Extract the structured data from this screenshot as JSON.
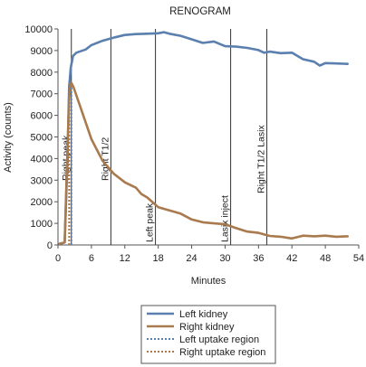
{
  "chart_data": {
    "type": "line",
    "title": "RENOGRAM",
    "xlabel": "Minutes",
    "ylabel": "Activity (counts)",
    "xlim": [
      0,
      54
    ],
    "ylim": [
      0,
      10000
    ],
    "xticks": [
      "0",
      "6",
      "12",
      "18",
      "24",
      "30",
      "36",
      "42",
      "48",
      "54"
    ],
    "yticks": [
      "0",
      "1000",
      "2000",
      "3000",
      "4000",
      "5000",
      "6000",
      "7000",
      "8000",
      "9000",
      "10000"
    ],
    "grid": false,
    "legend_position": "bottom",
    "series": [
      {
        "name": "Left kidney",
        "color": "#5b7fae",
        "style": "solid",
        "points": [
          [
            0.3,
            50
          ],
          [
            1.2,
            120
          ],
          [
            1.7,
            4000
          ],
          [
            2.0,
            7300
          ],
          [
            2.3,
            8200
          ],
          [
            2.7,
            8750
          ],
          [
            3.3,
            8900
          ],
          [
            5,
            9050
          ],
          [
            6,
            9250
          ],
          [
            8,
            9450
          ],
          [
            10,
            9600
          ],
          [
            12,
            9720
          ],
          [
            14,
            9760
          ],
          [
            16,
            9780
          ],
          [
            18,
            9800
          ],
          [
            19,
            9850
          ],
          [
            20,
            9780
          ],
          [
            22,
            9680
          ],
          [
            24,
            9520
          ],
          [
            26,
            9350
          ],
          [
            28,
            9420
          ],
          [
            30,
            9200
          ],
          [
            32,
            9180
          ],
          [
            34,
            9120
          ],
          [
            36,
            9020
          ],
          [
            37,
            8900
          ],
          [
            38,
            8950
          ],
          [
            40,
            8880
          ],
          [
            42,
            8900
          ],
          [
            44,
            8600
          ],
          [
            46,
            8480
          ],
          [
            47,
            8300
          ],
          [
            48,
            8420
          ],
          [
            50,
            8400
          ],
          [
            52,
            8380
          ]
        ]
      },
      {
        "name": "Right kidney",
        "color": "#a87a4e",
        "style": "solid",
        "points": [
          [
            0.3,
            50
          ],
          [
            1.2,
            120
          ],
          [
            1.6,
            3500
          ],
          [
            2.0,
            6800
          ],
          [
            2.4,
            7500
          ],
          [
            2.8,
            7300
          ],
          [
            4,
            6400
          ],
          [
            6,
            4900
          ],
          [
            8,
            3900
          ],
          [
            10,
            3300
          ],
          [
            12,
            2900
          ],
          [
            14,
            2650
          ],
          [
            15,
            2350
          ],
          [
            16,
            2200
          ],
          [
            18,
            1750
          ],
          [
            20,
            1600
          ],
          [
            22,
            1450
          ],
          [
            24,
            1180
          ],
          [
            26,
            1050
          ],
          [
            28,
            1000
          ],
          [
            30,
            960
          ],
          [
            32,
            780
          ],
          [
            34,
            620
          ],
          [
            36,
            560
          ],
          [
            38,
            420
          ],
          [
            40,
            380
          ],
          [
            42,
            300
          ],
          [
            44,
            430
          ],
          [
            46,
            400
          ],
          [
            48,
            430
          ],
          [
            50,
            380
          ],
          [
            52,
            400
          ]
        ]
      },
      {
        "name": "Left uptake region",
        "color": "#5b7fae",
        "style": "dotted",
        "x": 2.4,
        "y_range": [
          0,
          7300
        ]
      },
      {
        "name": "Right uptake region",
        "color": "#a87a4e",
        "style": "dotted",
        "x": 2.0,
        "y_range": [
          0,
          7500
        ]
      }
    ],
    "markers": [
      {
        "x": 2.4,
        "label": "Right peak"
      },
      {
        "x": 9.5,
        "label": "Right T1/2"
      },
      {
        "x": 17.5,
        "label": "Left peak"
      },
      {
        "x": 31,
        "label": "Lasix inject"
      },
      {
        "x": 37.5,
        "label": "Right T1/2 Lasix"
      }
    ]
  }
}
